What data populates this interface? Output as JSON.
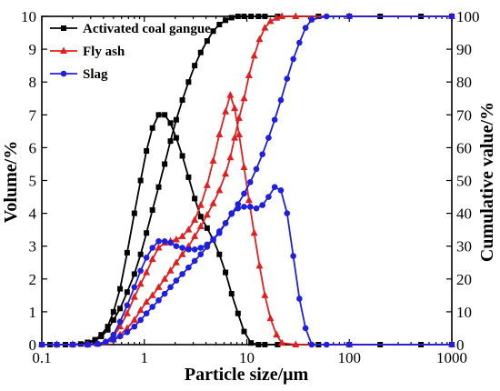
{
  "chart_data": {
    "type": "line",
    "title": "",
    "xlabel": "Particle size/μm",
    "ylabel_left": "Volume/%",
    "ylabel_right": "Cumulative value/%",
    "x_scale": "log",
    "xlim": [
      0.1,
      1000
    ],
    "ylim_left": [
      0,
      10
    ],
    "ylim_right": [
      0,
      100
    ],
    "x_tick_labels": [
      "0.1",
      "1",
      "10",
      "100",
      "1000"
    ],
    "y_left_tick_labels": [
      "0",
      "1",
      "2",
      "3",
      "4",
      "5",
      "6",
      "7",
      "8",
      "9",
      "10"
    ],
    "y_right_tick_labels": [
      "0",
      "10",
      "20",
      "30",
      "40",
      "50",
      "60",
      "70",
      "80",
      "90",
      "100"
    ],
    "grid": false,
    "legend_position": "top-left",
    "series": [
      {
        "name": "Activated coal gangue",
        "color": "#000000",
        "marker": "square",
        "axis": "left",
        "x": [
          0.1,
          0.12,
          0.14,
          0.17,
          0.2,
          0.24,
          0.28,
          0.33,
          0.38,
          0.44,
          0.5,
          0.58,
          0.68,
          0.8,
          0.92,
          1.05,
          1.2,
          1.38,
          1.58,
          1.8,
          2.05,
          2.35,
          2.7,
          3.1,
          3.55,
          4.1,
          4.7,
          5.4,
          6.2,
          7.1,
          8.2,
          9.4,
          11.0,
          13,
          15,
          20,
          50,
          100,
          200,
          500,
          1000
        ],
        "y": [
          0,
          0,
          0,
          0,
          0,
          0.02,
          0.07,
          0.15,
          0.3,
          0.55,
          1.0,
          1.7,
          2.8,
          4.0,
          5.0,
          5.9,
          6.6,
          7.0,
          7.0,
          6.75,
          6.3,
          5.75,
          5.1,
          4.45,
          3.9,
          3.55,
          3.2,
          2.75,
          2.2,
          1.55,
          0.95,
          0.4,
          0.05,
          0,
          0,
          0,
          0,
          0,
          0,
          0,
          0
        ]
      },
      {
        "name": "Activated coal gangue",
        "color": "#000000",
        "marker": "square",
        "axis": "right",
        "x": [
          0.1,
          0.14,
          0.2,
          0.28,
          0.33,
          0.38,
          0.44,
          0.5,
          0.58,
          0.68,
          0.8,
          0.92,
          1.05,
          1.2,
          1.38,
          1.58,
          1.8,
          2.05,
          2.35,
          2.7,
          3.1,
          3.55,
          4.1,
          4.7,
          5.4,
          6.2,
          7.1,
          8.2,
          9.4,
          11,
          13,
          15,
          20,
          50,
          100,
          200,
          500,
          1000
        ],
        "y": [
          0,
          0,
          0,
          0.5,
          1.2,
          2.5,
          4.5,
          7.5,
          11,
          16,
          21.5,
          27.5,
          34,
          41,
          48,
          55,
          62,
          68.5,
          74.5,
          80,
          85,
          89,
          92.5,
          95.5,
          97.5,
          98.8,
          99.6,
          100,
          100,
          100,
          100,
          100,
          100,
          100,
          100,
          100,
          100,
          100
        ]
      },
      {
        "name": "Fly ash",
        "color": "#e02020",
        "marker": "triangle",
        "axis": "left",
        "x": [
          0.1,
          0.14,
          0.2,
          0.28,
          0.35,
          0.42,
          0.5,
          0.58,
          0.68,
          0.8,
          0.92,
          1.05,
          1.2,
          1.38,
          1.58,
          1.8,
          2.05,
          2.35,
          2.7,
          3.1,
          3.55,
          4.1,
          4.7,
          5.4,
          6.2,
          6.9,
          7.6,
          8.4,
          9.4,
          10.5,
          11.8,
          13.3,
          15,
          17,
          19.5,
          22,
          30,
          100,
          1000
        ],
        "y": [
          0,
          0,
          0,
          0,
          0.02,
          0.08,
          0.25,
          0.55,
          0.95,
          1.45,
          1.85,
          2.2,
          2.6,
          2.95,
          3.1,
          3.15,
          3.2,
          3.3,
          3.5,
          3.8,
          4.25,
          4.85,
          5.6,
          6.4,
          7.1,
          7.6,
          7.2,
          6.4,
          5.4,
          4.4,
          3.4,
          2.4,
          1.5,
          0.8,
          0.3,
          0.05,
          0,
          0,
          0
        ]
      },
      {
        "name": "Fly ash",
        "color": "#e02020",
        "marker": "triangle",
        "axis": "right",
        "x": [
          0.1,
          0.14,
          0.2,
          0.28,
          0.35,
          0.42,
          0.5,
          0.58,
          0.68,
          0.8,
          0.92,
          1.05,
          1.2,
          1.38,
          1.58,
          1.8,
          2.05,
          2.35,
          2.7,
          3.1,
          3.55,
          4.1,
          4.7,
          5.4,
          6.2,
          6.9,
          7.6,
          8.4,
          9.4,
          10.5,
          11.8,
          13.3,
          15,
          17,
          19.5,
          22,
          30,
          100,
          1000
        ],
        "y": [
          0,
          0,
          0,
          0,
          0.3,
          0.8,
          1.5,
          3.0,
          5.0,
          7.5,
          10.5,
          13.0,
          15.0,
          17.5,
          20.0,
          22.5,
          25.0,
          27.5,
          30.0,
          33.0,
          36.0,
          39.5,
          43.0,
          47.0,
          52.0,
          57.0,
          63.0,
          69.0,
          75.0,
          82.0,
          88.0,
          93.0,
          96.5,
          98.5,
          99.5,
          100,
          100,
          100,
          100
        ]
      },
      {
        "name": "Slag",
        "color": "#1f1fe0",
        "marker": "circle",
        "axis": "left",
        "x": [
          0.1,
          0.14,
          0.2,
          0.28,
          0.35,
          0.42,
          0.5,
          0.58,
          0.68,
          0.8,
          0.92,
          1.05,
          1.2,
          1.38,
          1.58,
          1.8,
          2.05,
          2.35,
          2.7,
          3.1,
          3.55,
          4.1,
          4.7,
          5.4,
          6.2,
          7.1,
          8.2,
          9.4,
          10.8,
          12.4,
          14.2,
          16.3,
          18.7,
          21.5,
          24.7,
          28.4,
          32.6,
          37.4,
          43,
          60,
          100,
          1000
        ],
        "y": [
          0,
          0,
          0,
          0,
          0.02,
          0.08,
          0.3,
          0.7,
          1.2,
          1.75,
          2.25,
          2.65,
          2.95,
          3.15,
          3.15,
          3.1,
          3.0,
          2.95,
          2.9,
          2.9,
          2.95,
          3.05,
          3.2,
          3.4,
          3.7,
          4.0,
          4.15,
          4.2,
          4.2,
          4.15,
          4.25,
          4.5,
          4.8,
          4.7,
          4.0,
          2.7,
          1.4,
          0.5,
          0,
          0,
          0,
          0
        ]
      },
      {
        "name": "Slag",
        "color": "#1f1fe0",
        "marker": "circle",
        "axis": "right",
        "x": [
          0.1,
          0.14,
          0.2,
          0.28,
          0.35,
          0.42,
          0.5,
          0.58,
          0.68,
          0.8,
          0.92,
          1.05,
          1.2,
          1.38,
          1.58,
          1.8,
          2.05,
          2.35,
          2.7,
          3.1,
          3.55,
          4.1,
          4.7,
          5.4,
          6.2,
          7.1,
          8.2,
          9.4,
          10.8,
          12.4,
          14.2,
          16.3,
          18.7,
          21.5,
          24.7,
          28.4,
          32.6,
          37.4,
          43,
          60,
          100,
          1000
        ],
        "y": [
          0,
          0,
          0,
          0,
          0.3,
          0.8,
          1.5,
          2.5,
          3.8,
          5.5,
          7.5,
          9.5,
          11.5,
          13.5,
          15.5,
          17.5,
          19.5,
          21.5,
          23.5,
          25.5,
          27.5,
          29.8,
          32,
          34.5,
          37,
          39.8,
          42.8,
          46,
          49.5,
          53.5,
          58,
          63,
          68.5,
          74.5,
          81,
          87,
          92,
          96.5,
          99,
          100,
          100,
          100
        ]
      }
    ]
  }
}
